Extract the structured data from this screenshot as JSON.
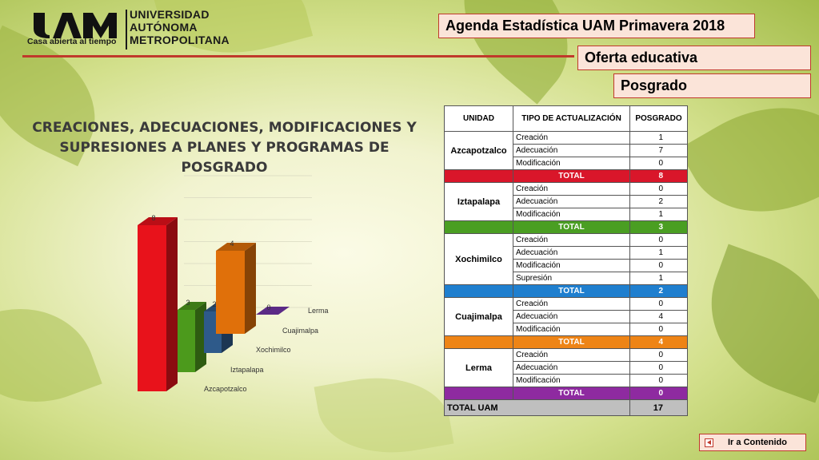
{
  "header": {
    "logo_tagline": "Casa abierta al tiempo",
    "logo_name_1": "UNIVERSIDAD",
    "logo_name_2": "AUTÓNOMA",
    "logo_name_3": "METROPOLITANA"
  },
  "boxes": {
    "agenda": "Agenda Estadística UAM Primavera 2018",
    "oferta": "Oferta educativa",
    "posgrado": "Posgrado"
  },
  "chart_title_line1": "CREACIONES, ADECUACIONES, MODIFICACIONES Y",
  "chart_title_line2": "SUPRESIONES A PLANES Y PROGRAMAS DE POSGRADO",
  "chart_data": {
    "type": "bar",
    "title": "CREACIONES, ADECUACIONES, MODIFICACIONES Y SUPRESIONES A PLANES Y PROGRAMAS DE POSGRADO",
    "categories": [
      "Azcapotzalco",
      "Iztapalapa",
      "Xochimilco",
      "Cuajimalpa",
      "Lerma"
    ],
    "values": [
      8,
      3,
      2,
      4,
      0
    ],
    "colors": [
      "#e8121b",
      "#4c9a1c",
      "#2e5a8a",
      "#e0700a",
      "#5b2a86"
    ],
    "ylim": [
      0,
      10
    ],
    "grid": true
  },
  "table": {
    "headers": [
      "UNIDAD",
      "TIPO DE ACTUALIZACIÓN",
      "POSGRADO"
    ],
    "groups": [
      {
        "unit": "Azcapotzalco",
        "color": "#d9162a",
        "rows": [
          [
            "Creación",
            "1"
          ],
          [
            "Adecuación",
            "7"
          ],
          [
            "Modificación",
            "0"
          ]
        ],
        "total_label": "TOTAL",
        "total": "8"
      },
      {
        "unit": "Iztapalapa",
        "color": "#4a9e22",
        "rows": [
          [
            "Creación",
            "0"
          ],
          [
            "Adecuación",
            "2"
          ],
          [
            "Modificación",
            "1"
          ]
        ],
        "total_label": "TOTAL",
        "total": "3"
      },
      {
        "unit": "Xochimilco",
        "color": "#1f7fcf",
        "rows": [
          [
            "Creación",
            "0"
          ],
          [
            "Adecuación",
            "1"
          ],
          [
            "Modificación",
            "0"
          ],
          [
            "Supresión",
            "1"
          ]
        ],
        "total_label": "TOTAL",
        "total": "2"
      },
      {
        "unit": "Cuajimalpa",
        "color": "#ee8416",
        "rows": [
          [
            "Creación",
            "0"
          ],
          [
            "Adecuación",
            "4"
          ],
          [
            "Modificación",
            "0"
          ]
        ],
        "total_label": "TOTAL",
        "total": "4"
      },
      {
        "unit": "Lerma",
        "color": "#8e2aa0",
        "rows": [
          [
            "Creación",
            "0"
          ],
          [
            "Adecuación",
            "0"
          ],
          [
            "Modificación",
            "0"
          ]
        ],
        "total_label": "TOTAL",
        "total": "0"
      }
    ],
    "grand_total_label": "TOTAL UAM",
    "grand_total": "17"
  },
  "nav": {
    "label": "Ir a Contenido"
  }
}
